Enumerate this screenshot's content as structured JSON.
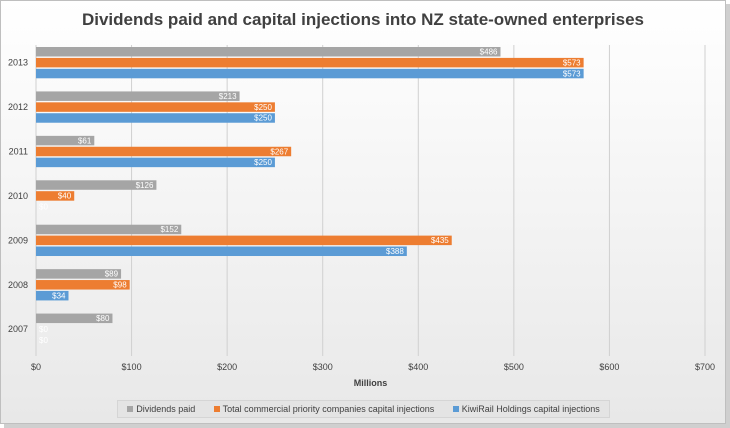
{
  "title": "Dividends paid and capital injections into NZ state-owned enterprises",
  "chart_data": {
    "type": "bar",
    "orientation": "horizontal",
    "title": "Dividends paid and capital injections into NZ state-owned enterprises",
    "xlabel": "Millions",
    "ylabel": "",
    "xlim": [
      0,
      700
    ],
    "x_ticks": [
      "$0",
      "$100",
      "$200",
      "$300",
      "$400",
      "$500",
      "$600",
      "$700"
    ],
    "categories": [
      "2013",
      "2012",
      "2011",
      "2010",
      "2009",
      "2008",
      "2007"
    ],
    "series": [
      {
        "name": "Dividends paid",
        "color": "#a5a5a5",
        "values": [
          486,
          213,
          61,
          126,
          152,
          89,
          80
        ],
        "labels": [
          "$486",
          "$213",
          "$61",
          "$126",
          "$152",
          "$89",
          "$80"
        ]
      },
      {
        "name": "Total commercial priority companies capital injections",
        "color": "#ed7d31",
        "values": [
          573,
          250,
          267,
          40,
          435,
          98,
          0
        ],
        "labels": [
          "$573",
          "$250",
          "$267",
          "$40",
          "$435",
          "$98",
          "$0"
        ]
      },
      {
        "name": "KiwiRail Holdings capital injections",
        "color": "#5b9bd5",
        "values": [
          573,
          250,
          250,
          0,
          388,
          34,
          0
        ],
        "labels": [
          "$573",
          "$250",
          "$250",
          "$0",
          "$388",
          "$34",
          "$0"
        ]
      }
    ],
    "grid": true,
    "legend_position": "bottom"
  }
}
